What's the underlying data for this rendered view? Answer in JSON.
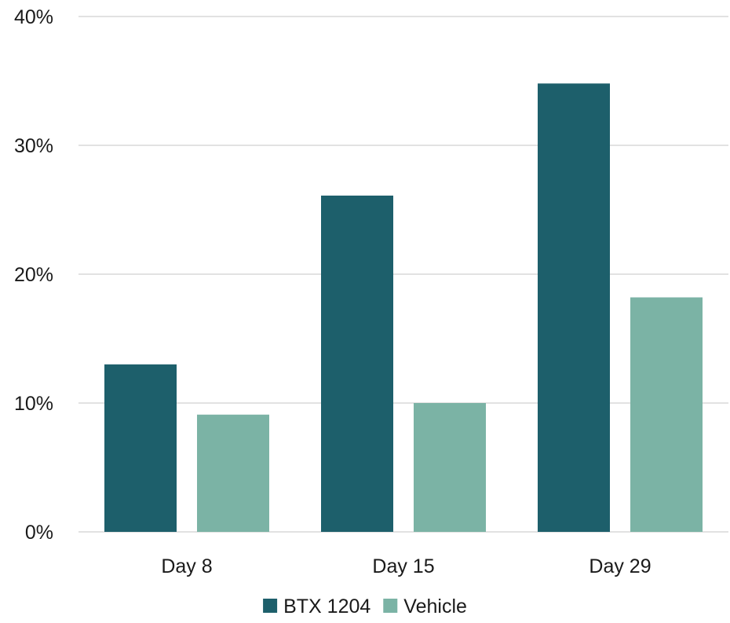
{
  "chart_data": {
    "type": "bar",
    "categories": [
      "Day 8",
      "Day 15",
      "Day 29"
    ],
    "series": [
      {
        "name": "BTX 1204",
        "values": [
          13,
          26.1,
          34.8
        ],
        "color": "#1d5f6b"
      },
      {
        "name": "Vehicle",
        "values": [
          9.1,
          10,
          18.2
        ],
        "color": "#7bb3a5"
      }
    ],
    "ylim": [
      0,
      40
    ],
    "yticks": [
      0,
      10,
      20,
      30,
      40
    ],
    "ytick_labels": [
      "0%",
      "10%",
      "20%",
      "30%",
      "40%"
    ],
    "grid": true,
    "legend": "bottom"
  }
}
